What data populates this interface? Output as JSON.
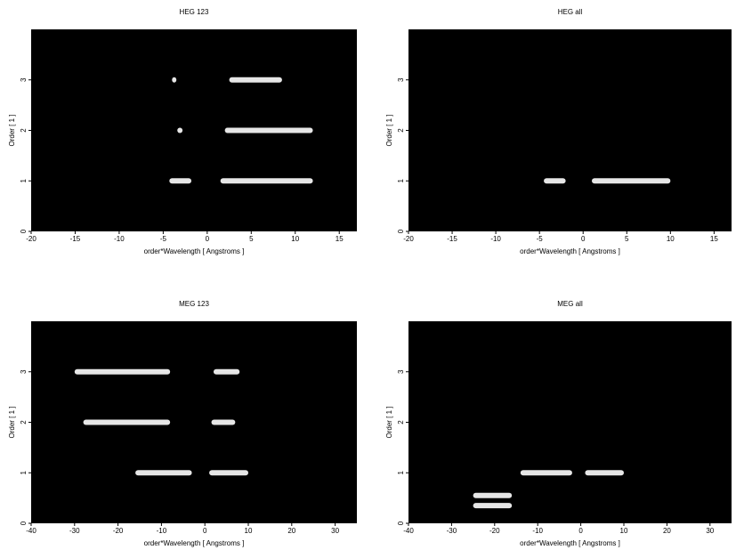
{
  "chart_data": [
    {
      "type": "heatmap",
      "title": "HEG 123",
      "x_label": "order*Wavelength [ Angstroms ]",
      "y_label": "Order [ 1 ]",
      "xlim": [
        -20,
        17
      ],
      "xticks": [
        -20,
        -15,
        -10,
        -5,
        0,
        5,
        10,
        15
      ],
      "ylim": [
        0,
        4
      ],
      "yticks": [
        0,
        1,
        2,
        3
      ],
      "background": "#000000",
      "color": "#ffffff",
      "bands": [
        {
          "x": [
            -4.3,
            -1.8
          ],
          "y": 1
        },
        {
          "x": [
            1.5,
            12
          ],
          "y": 1
        },
        {
          "x": [
            2,
            12
          ],
          "y": 2
        },
        {
          "x": [
            -3.4,
            -2.8
          ],
          "y": 2
        },
        {
          "x": [
            2.5,
            8.5
          ],
          "y": 3
        },
        {
          "x": [
            -4,
            -3.5
          ],
          "y": 3
        }
      ]
    },
    {
      "type": "heatmap",
      "title": "HEG all",
      "x_label": "order*Wavelength [ Angstroms ]",
      "y_label": "Order [ 1 ]",
      "xlim": [
        -20,
        17
      ],
      "xticks": [
        -20,
        -15,
        -10,
        -5,
        0,
        5,
        10,
        15
      ],
      "ylim": [
        0,
        4
      ],
      "yticks": [
        0,
        1,
        2,
        3
      ],
      "background": "#000000",
      "color": "#ffffff",
      "bands": [
        {
          "x": [
            -4.5,
            -2
          ],
          "y": 1
        },
        {
          "x": [
            1,
            10
          ],
          "y": 1
        }
      ]
    },
    {
      "type": "heatmap",
      "title": "MEG 123",
      "x_label": "order*Wavelength [ Angstroms ]",
      "y_label": "Order [ 1 ]",
      "xlim": [
        -40,
        35
      ],
      "xticks": [
        -40,
        -30,
        -20,
        -10,
        0,
        10,
        20,
        30
      ],
      "ylim": [
        0,
        4
      ],
      "yticks": [
        0,
        1,
        2,
        3
      ],
      "background": "#000000",
      "color": "#ffffff",
      "bands": [
        {
          "x": [
            -16,
            -3
          ],
          "y": 1
        },
        {
          "x": [
            1,
            10
          ],
          "y": 1
        },
        {
          "x": [
            -28,
            -8
          ],
          "y": 2
        },
        {
          "x": [
            1.5,
            7
          ],
          "y": 2
        },
        {
          "x": [
            -30,
            -8
          ],
          "y": 3
        },
        {
          "x": [
            2,
            8
          ],
          "y": 3
        }
      ]
    },
    {
      "type": "heatmap",
      "title": "MEG all",
      "x_label": "order*Wavelength [ Angstroms ]",
      "y_label": "Order [ 1 ]",
      "xlim": [
        -40,
        35
      ],
      "xticks": [
        -40,
        -30,
        -20,
        -10,
        0,
        10,
        20,
        30
      ],
      "ylim": [
        0,
        4
      ],
      "yticks": [
        0,
        1,
        2,
        3
      ],
      "background": "#000000",
      "color": "#ffffff",
      "bands": [
        {
          "x": [
            -14,
            -2
          ],
          "y": 1
        },
        {
          "x": [
            1,
            10
          ],
          "y": 1
        },
        {
          "x": [
            -25,
            -16
          ],
          "y": 0.55
        },
        {
          "x": [
            -25,
            -16
          ],
          "y": 0.35
        }
      ]
    }
  ]
}
